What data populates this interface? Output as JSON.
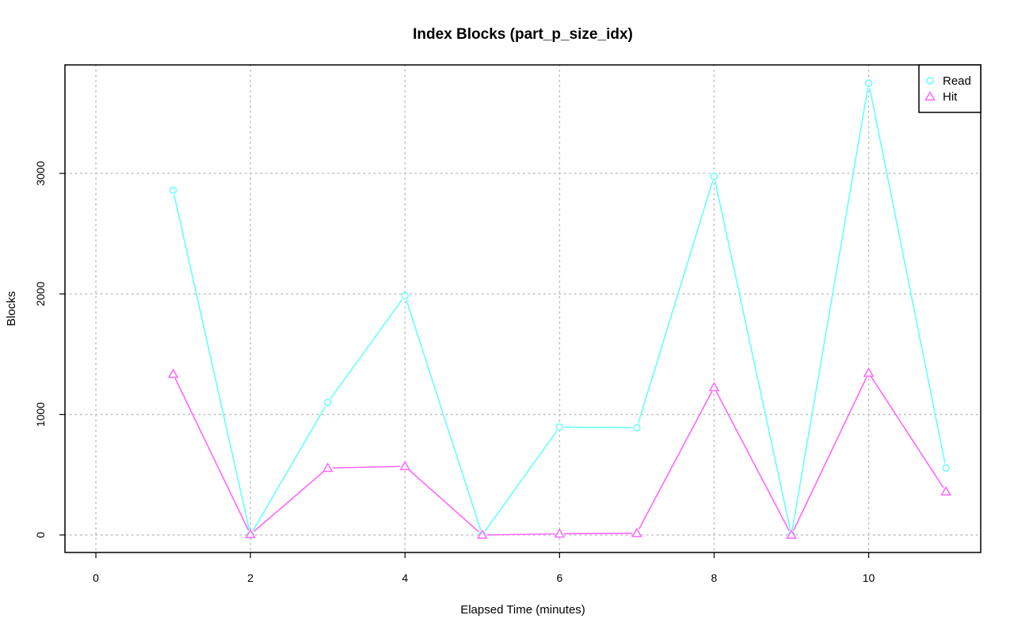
{
  "chart_data": {
    "type": "line",
    "title": "Index Blocks (part_p_size_idx)",
    "xlabel": "Elapsed Time (minutes)",
    "ylabel": "Blocks",
    "xlim": [
      -0.4,
      11.45
    ],
    "ylim": [
      -145,
      3900
    ],
    "x_ticks": [
      0,
      2,
      4,
      6,
      8,
      10
    ],
    "y_ticks": [
      0,
      1000,
      2000,
      3000
    ],
    "grid": true,
    "legend_position": "top-right",
    "x": [
      1,
      2,
      3,
      4,
      5,
      6,
      7,
      8,
      9,
      10,
      11
    ],
    "series": [
      {
        "name": "Read",
        "marker": "circle",
        "color": "#66ffff",
        "values": [
          2860,
          0,
          1100,
          1985,
          0,
          895,
          890,
          2975,
          0,
          3750,
          555
        ]
      },
      {
        "name": "Hit",
        "marker": "triangle",
        "color": "#ff66ff",
        "values": [
          1335,
          5,
          555,
          570,
          0,
          10,
          15,
          1225,
          0,
          1345,
          360
        ]
      }
    ]
  }
}
